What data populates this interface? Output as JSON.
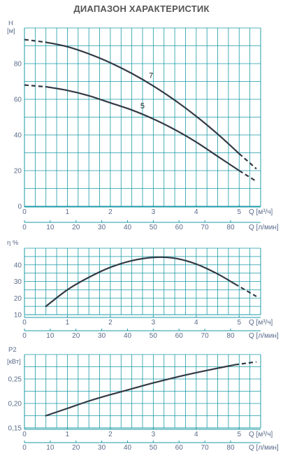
{
  "title": "ДИАПАЗОН ХАРАКТЕРИСТИК",
  "chart_data": [
    {
      "type": "line",
      "ylabel_symbol": "H",
      "ylabel_unit": "[м]",
      "xlabel_top": "Q [м³/ч]",
      "xlabel_bottom": "Q [л/мин]",
      "xlim_m3h": [
        0,
        5.5
      ],
      "ylim": [
        0,
        100
      ],
      "yticks": [
        0,
        20,
        40,
        60,
        80
      ],
      "xticks_m3h": [
        0,
        1,
        2,
        3,
        4,
        5
      ],
      "xticks_lmin": [
        0,
        10,
        20,
        30,
        40,
        50,
        60,
        70,
        80
      ],
      "grid": true,
      "series": [
        {
          "name": "7",
          "x": [
            0,
            0.5,
            1.0,
            1.5,
            2.0,
            2.5,
            3.0,
            3.5,
            4.0,
            4.5,
            5.0,
            5.4
          ],
          "y": [
            93.5,
            92,
            89.5,
            85.5,
            80.5,
            74.5,
            67.5,
            59.5,
            50.5,
            40.5,
            29.5,
            21
          ],
          "dashed_before": 0.5,
          "dashed_after": 4.9
        },
        {
          "name": "5",
          "x": [
            0,
            0.5,
            1.0,
            1.5,
            2.0,
            2.5,
            3.0,
            3.5,
            4.0,
            4.5,
            5.0,
            5.4
          ],
          "y": [
            68,
            67,
            65,
            62,
            58,
            54,
            49,
            43,
            36,
            28,
            20,
            14
          ],
          "dashed_before": 0.5,
          "dashed_after": 4.9
        }
      ]
    },
    {
      "type": "line",
      "ylabel_symbol": "η %",
      "xlabel_top": "Q [м³/ч]",
      "xlabel_bottom": "Q [л/мин]",
      "xlim_m3h": [
        0,
        5.5
      ],
      "ylim": [
        10,
        50
      ],
      "yticks": [
        10,
        20,
        30,
        40
      ],
      "xticks_m3h": [
        0,
        1,
        2,
        3,
        4,
        5
      ],
      "xticks_lmin": [
        0,
        10,
        20,
        30,
        40,
        50,
        60,
        70,
        80
      ],
      "grid": true,
      "series": [
        {
          "x": [
            0.5,
            1.0,
            1.5,
            2.0,
            2.5,
            3.0,
            3.5,
            4.0,
            4.5,
            4.9,
            5.4
          ],
          "y": [
            15,
            25,
            32.5,
            38.5,
            42.5,
            44.5,
            44,
            40.5,
            34.5,
            28.5,
            21
          ],
          "dashed_after": 4.8
        }
      ]
    },
    {
      "type": "line",
      "ylabel_symbol": "P2",
      "ylabel_unit": "[кВт]",
      "xlabel_top": "Q [м³/ч]",
      "xlabel_bottom": "Q [л/мин]",
      "xlim_m3h": [
        0,
        5.5
      ],
      "ylim": [
        0.15,
        0.3
      ],
      "yticks": [
        0.15,
        0.2,
        0.25
      ],
      "ytick_labels": [
        "0,15",
        "0,20",
        "0,25"
      ],
      "xticks_m3h": [
        0,
        1,
        2,
        3,
        4,
        5
      ],
      "xticks_lmin": [
        0,
        10,
        20,
        30,
        40,
        50,
        60,
        70,
        80
      ],
      "grid": true,
      "series": [
        {
          "x": [
            0.5,
            1.0,
            1.5,
            2.0,
            2.5,
            3.0,
            3.5,
            4.0,
            4.5,
            4.9,
            5.4
          ],
          "y": [
            0.175,
            0.19,
            0.205,
            0.218,
            0.23,
            0.242,
            0.253,
            0.263,
            0.272,
            0.279,
            0.285
          ],
          "dashed_after": 4.9
        }
      ]
    }
  ]
}
